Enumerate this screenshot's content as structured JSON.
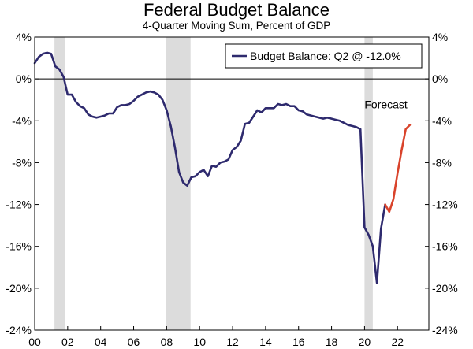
{
  "chart_data": {
    "type": "line",
    "title": "Federal Budget Balance",
    "subtitle": "4-Quarter Moving Sum, Percent of GDP",
    "xlabel": "",
    "ylabel": "",
    "xlim": [
      2000,
      2023.9
    ],
    "ylim": [
      -24,
      4
    ],
    "x_ticks": [
      2000,
      2002,
      2004,
      2006,
      2008,
      2010,
      2012,
      2014,
      2016,
      2018,
      2020,
      2022
    ],
    "x_tick_labels": [
      "00",
      "02",
      "04",
      "06",
      "08",
      "10",
      "12",
      "14",
      "16",
      "18",
      "20",
      "22"
    ],
    "y_ticks": [
      4,
      0,
      -4,
      -8,
      -12,
      -16,
      -20,
      -24
    ],
    "y_tick_labels": [
      "4%",
      "0%",
      "-4%",
      "-8%",
      "-12%",
      "-16%",
      "-20%",
      "-24%"
    ],
    "grid": false,
    "legend": {
      "placement": "top-right",
      "label": "Budget Balance: Q2 @ -12.0%"
    },
    "annotations": [
      {
        "text": "Forecast",
        "x": 2021.3,
        "y": -2.8
      }
    ],
    "recessions": [
      [
        2001.2,
        2001.85
      ],
      [
        2007.95,
        2009.45
      ],
      [
        2020.0,
        2020.5
      ]
    ],
    "series": [
      {
        "name": "Budget Balance: Q2 @ -12.0%",
        "color": "#2e2a6e",
        "x": [
          2000.0,
          2000.25,
          2000.5,
          2000.75,
          2001.0,
          2001.25,
          2001.5,
          2001.75,
          2002.0,
          2002.25,
          2002.5,
          2002.75,
          2003.0,
          2003.25,
          2003.5,
          2003.75,
          2004.0,
          2004.25,
          2004.5,
          2004.75,
          2005.0,
          2005.25,
          2005.5,
          2005.75,
          2006.0,
          2006.25,
          2006.5,
          2006.75,
          2007.0,
          2007.25,
          2007.5,
          2007.75,
          2008.0,
          2008.25,
          2008.5,
          2008.75,
          2009.0,
          2009.25,
          2009.5,
          2009.75,
          2010.0,
          2010.25,
          2010.5,
          2010.75,
          2011.0,
          2011.25,
          2011.5,
          2011.75,
          2012.0,
          2012.25,
          2012.5,
          2012.75,
          2013.0,
          2013.25,
          2013.5,
          2013.75,
          2014.0,
          2014.25,
          2014.5,
          2014.75,
          2015.0,
          2015.25,
          2015.5,
          2015.75,
          2016.0,
          2016.25,
          2016.5,
          2016.75,
          2017.0,
          2017.25,
          2017.5,
          2017.75,
          2018.0,
          2018.25,
          2018.5,
          2018.75,
          2019.0,
          2019.25,
          2019.5,
          2019.75,
          2020.0,
          2020.25,
          2020.5,
          2020.75,
          2021.0,
          2021.25
        ],
        "y": [
          1.5,
          2.1,
          2.4,
          2.5,
          2.4,
          1.2,
          0.9,
          0.2,
          -1.5,
          -1.5,
          -2.2,
          -2.6,
          -2.8,
          -3.4,
          -3.6,
          -3.7,
          -3.6,
          -3.5,
          -3.3,
          -3.3,
          -2.7,
          -2.5,
          -2.5,
          -2.4,
          -2.1,
          -1.7,
          -1.5,
          -1.3,
          -1.2,
          -1.3,
          -1.5,
          -2.0,
          -3.0,
          -4.5,
          -6.5,
          -8.9,
          -9.9,
          -10.2,
          -9.4,
          -9.3,
          -8.9,
          -8.7,
          -9.3,
          -8.3,
          -8.4,
          -8.0,
          -7.9,
          -7.7,
          -6.8,
          -6.5,
          -5.9,
          -4.3,
          -4.2,
          -3.6,
          -3.0,
          -3.2,
          -2.8,
          -2.8,
          -2.8,
          -2.4,
          -2.5,
          -2.4,
          -2.6,
          -2.6,
          -3.0,
          -3.1,
          -3.4,
          -3.5,
          -3.6,
          -3.7,
          -3.8,
          -3.7,
          -3.8,
          -3.9,
          -4.0,
          -4.2,
          -4.4,
          -4.5,
          -4.6,
          -4.8,
          -14.2,
          -14.9,
          -16.0,
          -19.5,
          -14.3,
          -12.0
        ]
      },
      {
        "name": "",
        "color": "#d9432b",
        "x": [
          2021.25,
          2021.5,
          2021.75,
          2022.0,
          2022.25,
          2022.5,
          2022.75
        ],
        "y": [
          -12.0,
          -12.7,
          -11.5,
          -9.0,
          -6.8,
          -4.8,
          -4.4
        ]
      }
    ]
  }
}
